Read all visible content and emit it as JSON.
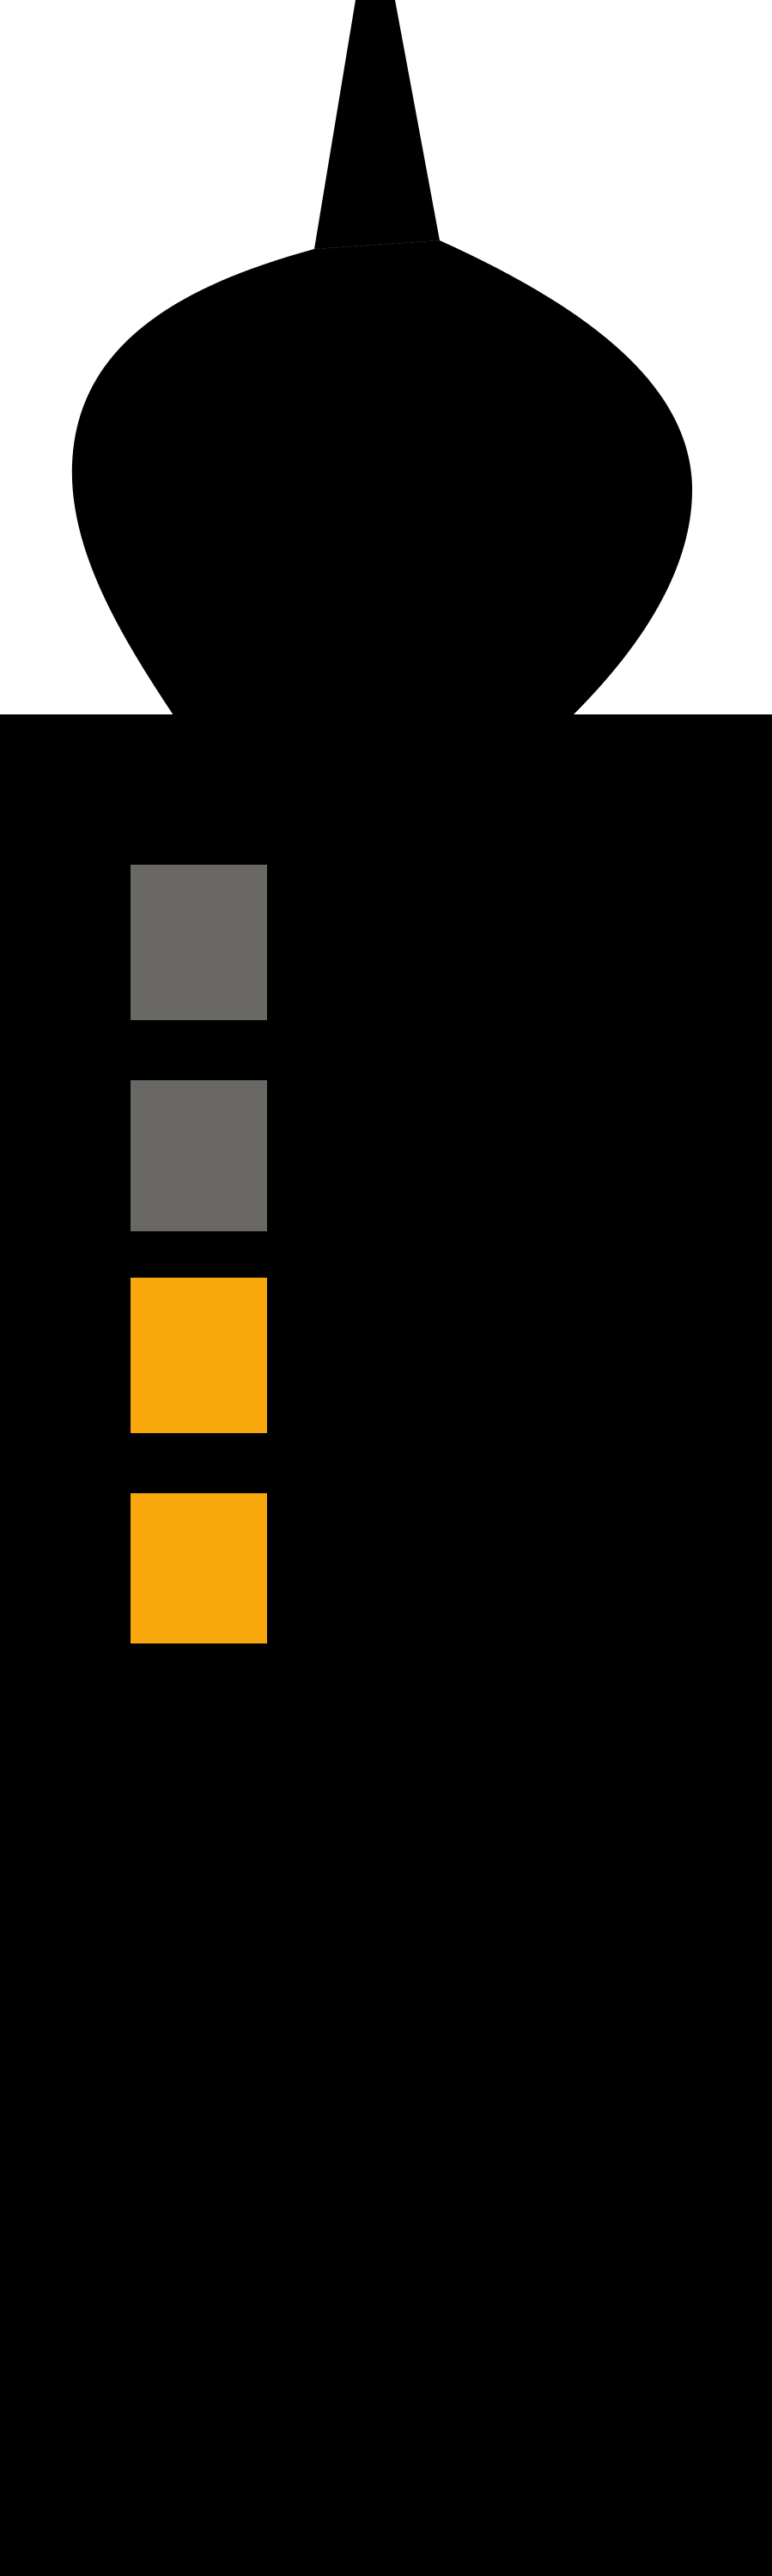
{
  "colors": {
    "background": "#ffffff",
    "silhouette": "#000000",
    "window_unlit": "#6a6864",
    "window_lit": "#f8a80c"
  },
  "tower": {
    "icon": "onion-dome-tower-icon",
    "windows": [
      {
        "name": "window-1",
        "state": "unlit"
      },
      {
        "name": "window-2",
        "state": "unlit"
      },
      {
        "name": "window-3",
        "state": "lit"
      },
      {
        "name": "window-4",
        "state": "lit"
      }
    ]
  }
}
